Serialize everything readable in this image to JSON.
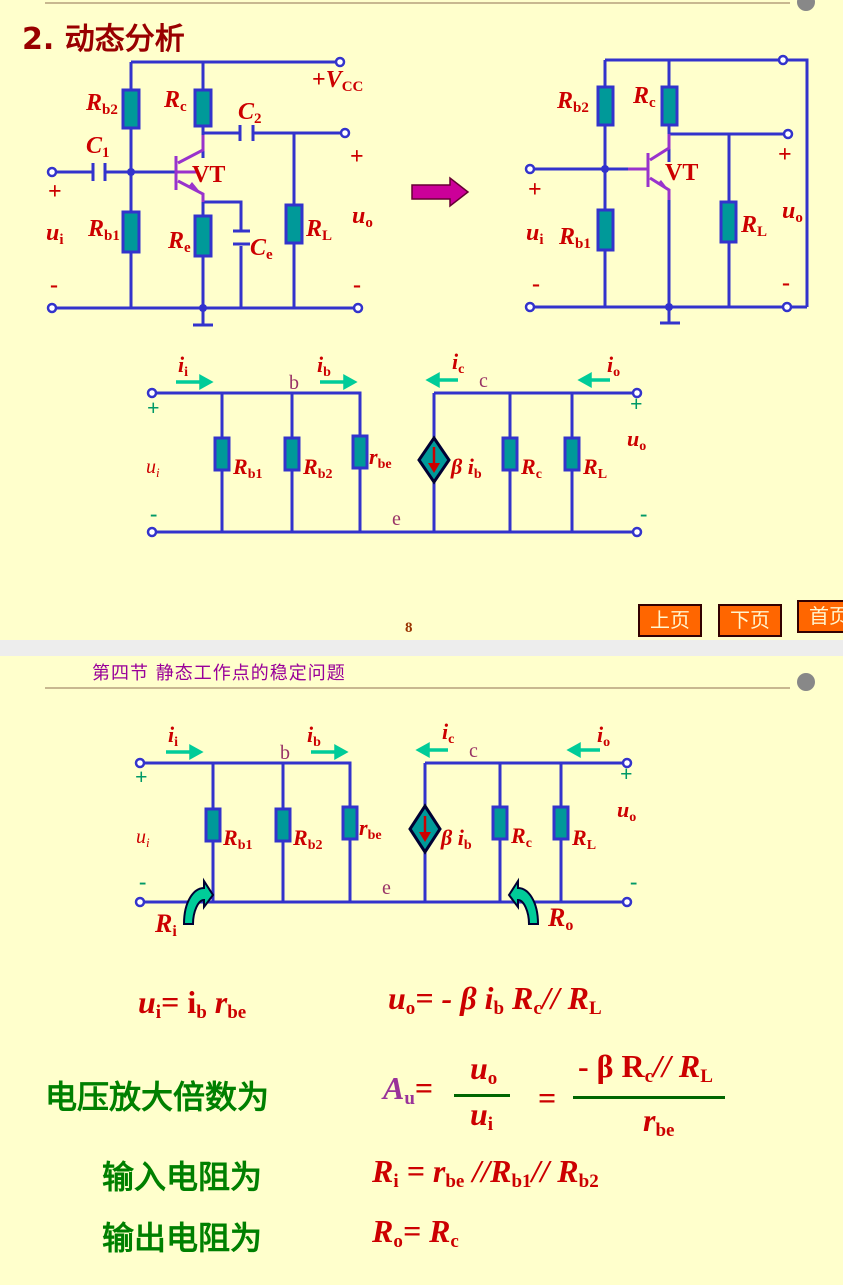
{
  "slide1": {
    "title": "2. 动态分析",
    "page_number": "8",
    "nav": {
      "prev": "上页",
      "next": "下页",
      "home": "首页"
    },
    "circuit_a": {
      "labels": {
        "rb2": "R",
        "rb2_sub": "b2",
        "rc": "R",
        "rc_sub": "c",
        "c2": "C",
        "c2_sub": "2",
        "vcc_plus": "+",
        "vcc": "V",
        "vcc_sub": "CC",
        "c1": "C",
        "c1_sub": "1",
        "vt": "VT",
        "plus_in": "+",
        "plus_out": "+",
        "ui": "u",
        "ui_sub": "i",
        "rb1": "R",
        "rb1_sub": "b1",
        "re": "R",
        "re_sub": "e",
        "ce": "C",
        "ce_sub": "e",
        "rl": "R",
        "rl_sub": "L",
        "uo": "u",
        "uo_sub": "o",
        "minus_in": "-",
        "minus_out": "-"
      }
    },
    "circuit_b": {
      "labels": {
        "rb2": "R",
        "rb2_sub": "b2",
        "rc": "R",
        "rc_sub": "c",
        "vt": "VT",
        "plus_in": "+",
        "plus_out": "+",
        "ui": "u",
        "ui_sub": "i",
        "rb1": "R",
        "rb1_sub": "b1",
        "rl": "R",
        "rl_sub": "L",
        "uo": "u",
        "uo_sub": "o",
        "minus_in": "-",
        "minus_out": "-"
      }
    },
    "small_signal": {
      "ii": "i",
      "ii_sub": "i",
      "b": "b",
      "ib": "i",
      "ib_sub": "b",
      "ic": "i",
      "ic_sub": "c",
      "c": "c",
      "io": "i",
      "io_sub": "o",
      "plus_in": "+",
      "plus_out": "+",
      "ui": "u",
      "ui_sub": "i",
      "uo": "u",
      "uo_sub": "o",
      "rb1": "R",
      "rb1_sub": "b1",
      "rb2": "R",
      "rb2_sub": "b2",
      "rbe": "r",
      "rbe_sub": "be",
      "beta_ib": "β i",
      "beta_ib_sub": "b",
      "rc": "R",
      "rc_sub": "c",
      "rl": "R",
      "rl_sub": "L",
      "minus_in": "-",
      "minus_out": "-",
      "e": "e"
    }
  },
  "slide2": {
    "header": "第四节  静态工作点的稳定问题",
    "small_signal": {
      "ii": "i",
      "ii_sub": "i",
      "b": "b",
      "ib": "i",
      "ib_sub": "b",
      "ic": "i",
      "ic_sub": "c",
      "c": "c",
      "io": "i",
      "io_sub": "o",
      "plus_in": "+",
      "plus_out": "+",
      "ui": "u",
      "ui_sub": "i",
      "uo": "u",
      "uo_sub": "o",
      "rb1": "R",
      "rb1_sub": "b1",
      "rb2": "R",
      "rb2_sub": "b2",
      "rbe": "r",
      "rbe_sub": "be",
      "beta_ib": "β i",
      "beta_ib_sub": "b",
      "rc": "R",
      "rc_sub": "c",
      "rl": "R",
      "rl_sub": "L",
      "minus_in": "-",
      "minus_out": "-",
      "e": "e",
      "ri": "R",
      "ri_sub": "i",
      "ro": "R",
      "ro_sub": "o"
    },
    "eq_ui": {
      "lhs": "u",
      "lhs_sub": "i",
      "rhs_a": "=   i",
      "rhs_a_sub": "b",
      "rhs_b": " r",
      "rhs_b_sub": "be"
    },
    "eq_uo": {
      "lhs": "u",
      "lhs_sub": "o",
      "rhs_a": "=   -  β  i",
      "rhs_a_sub": "b",
      "rhs_b": " R",
      "rhs_b_sub": "c",
      "rhs_c": "// R",
      "rhs_c_sub": "L"
    },
    "gain": {
      "label": "电压放大倍数为",
      "lhs": "A",
      "lhs_sub": "u",
      "eq1": "=",
      "num1": "u",
      "num1_sub": "o",
      "den1": "u",
      "den1_sub": "i",
      "eq2": "=",
      "num2": "-  β  R",
      "num2_sub": "c",
      "num2_b": "// R",
      "num2_b_sub": "L",
      "den2": "r",
      "den2_sub": "be"
    },
    "rin": {
      "label": "输入电阻为",
      "lhs": "R",
      "lhs_sub": "i",
      "rhs_a": " =  r",
      "rhs_a_sub": "be",
      "rhs_b": " //R",
      "rhs_b_sub": "b1",
      "rhs_c": "// R",
      "rhs_c_sub": "b2"
    },
    "rout": {
      "label": "输出电阻为",
      "lhs": "R",
      "lhs_sub": "o",
      "rhs_a": "= R",
      "rhs_a_sub": "c"
    }
  },
  "colors": {
    "wire": "#3333cc",
    "resistor_fill": "#009999",
    "label_red": "#cc0000",
    "arrow_green": "#00cc99",
    "nav_orange": "#ff6600",
    "heading_green": "#008000"
  }
}
